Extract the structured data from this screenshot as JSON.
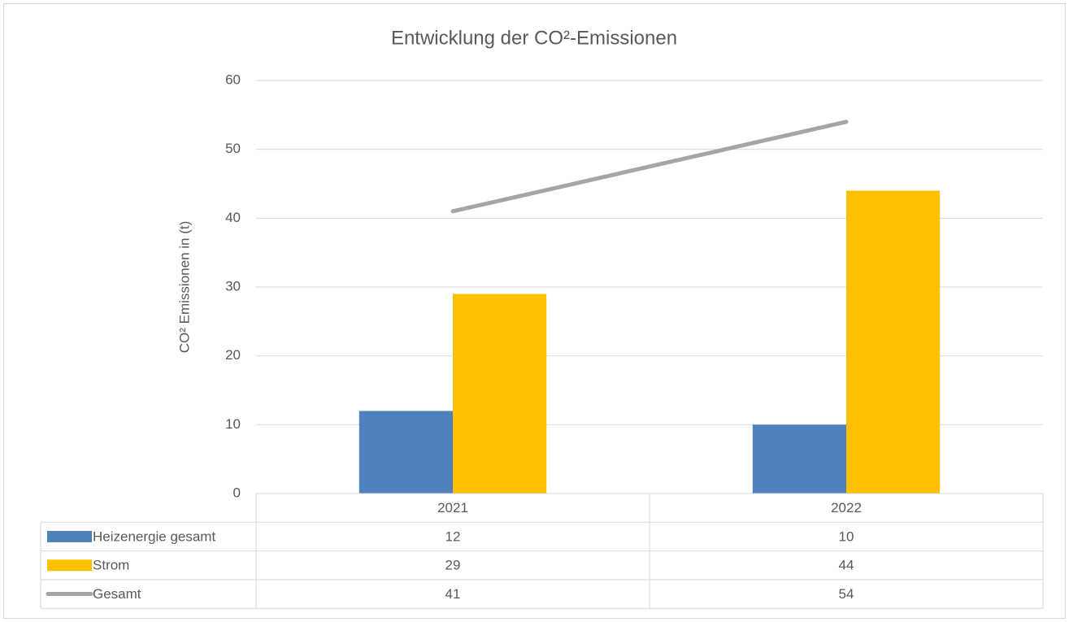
{
  "chart_data": {
    "type": "bar",
    "title": "Entwicklung der CO²-Emissionen",
    "y_label": "CO² Emissionen in (t)",
    "categories": [
      "2021",
      "2022"
    ],
    "series": [
      {
        "name": "Heizenergie gesamt",
        "type": "bar",
        "color": "#4f81bd",
        "values": [
          12,
          10
        ]
      },
      {
        "name": "Strom",
        "type": "bar",
        "color": "#ffc000",
        "values": [
          29,
          44
        ]
      },
      {
        "name": "Gesamt",
        "type": "line",
        "color": "#a5a5a5",
        "values": [
          41,
          54
        ]
      }
    ],
    "ylim": [
      0,
      60
    ],
    "yticks": [
      0,
      10,
      20,
      30,
      40,
      50,
      60
    ],
    "grid": true,
    "data_table": true
  }
}
